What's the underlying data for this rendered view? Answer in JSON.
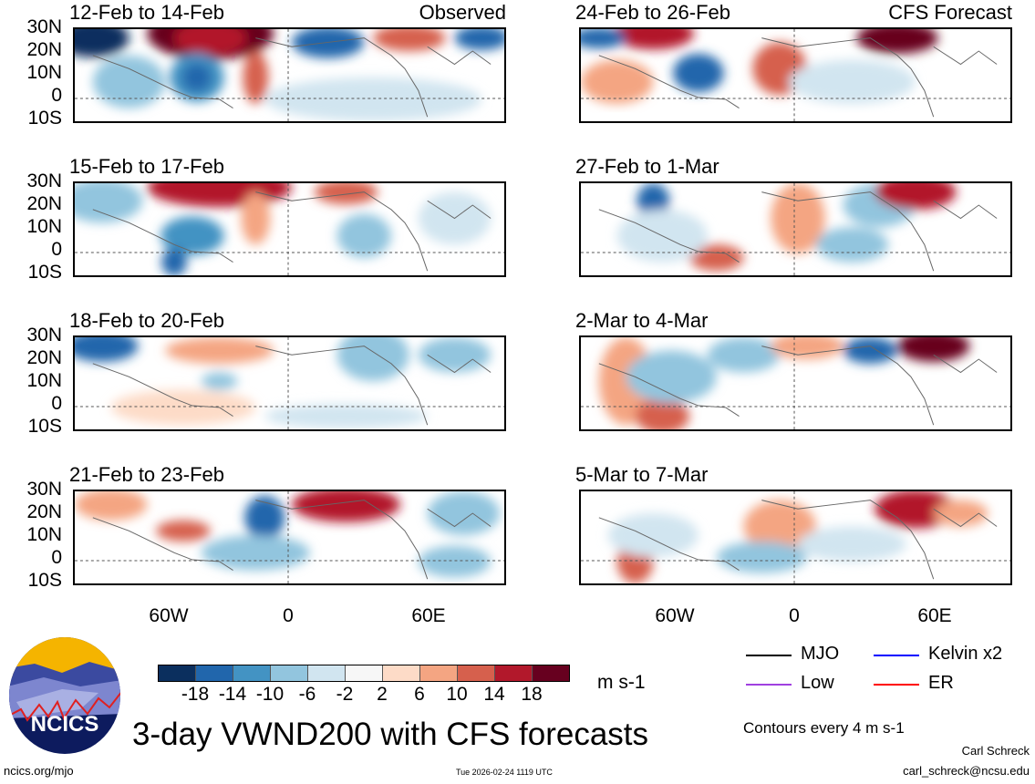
{
  "panels": [
    {
      "title": "12-Feb to 14-Feb",
      "label": "Observed"
    },
    {
      "title": "15-Feb to 17-Feb"
    },
    {
      "title": "18-Feb to 20-Feb"
    },
    {
      "title": "21-Feb to 23-Feb"
    },
    {
      "title": "24-Feb to 26-Feb",
      "label": "CFS Forecast"
    },
    {
      "title": "27-Feb to 1-Mar"
    },
    {
      "title": "2-Mar to 4-Mar"
    },
    {
      "title": "5-Mar to 7-Mar"
    }
  ],
  "lat_labels": [
    "30N",
    "20N",
    "10N",
    "0",
    "10S"
  ],
  "lon_labels": [
    "60W",
    "0",
    "60E"
  ],
  "colorbar": {
    "colors": [
      "#0b2f5e",
      "#2166ac",
      "#4393c3",
      "#92c5de",
      "#d1e5f0",
      "#f7f7f7",
      "#fddbc7",
      "#f4a582",
      "#d6604d",
      "#b2182b",
      "#67001f"
    ],
    "ticks": [
      "-18",
      "-14",
      "-10",
      "-6",
      "-2",
      "2",
      "6",
      "10",
      "14",
      "18"
    ],
    "units": "m s-1"
  },
  "legend": [
    {
      "label": "MJO",
      "color": "#000000"
    },
    {
      "label": "Kelvin x2",
      "color": "#0000ff"
    },
    {
      "label": "Low",
      "color": "#a040e0"
    },
    {
      "label": "ER",
      "color": "#ff0000"
    }
  ],
  "contour_note": "Contours every 4 m s-1",
  "title": "3-day VWND200 with CFS forecasts",
  "logo_text": "NCICS",
  "footer": {
    "url": "ncics.org/mjo",
    "timestamp": "Tue 2026-02-24 1119 UTC",
    "author": "Carl Schreck",
    "email": "carl_schreck@ncsu.edu"
  }
}
